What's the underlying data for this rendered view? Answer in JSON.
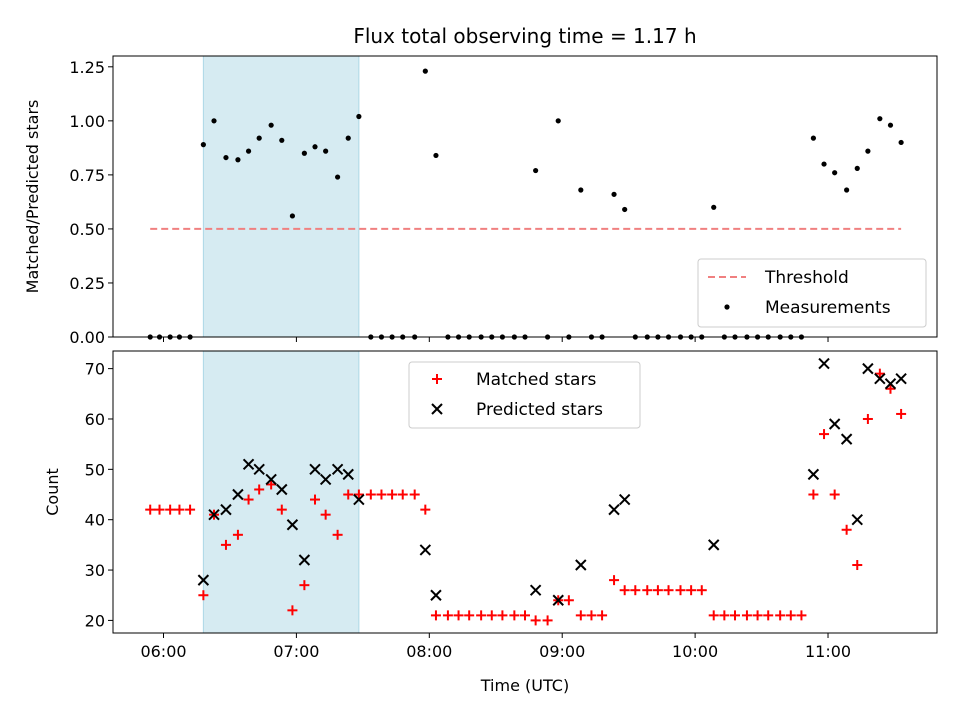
{
  "chart_data": [
    {
      "type": "scatter",
      "title": "Flux total observing time = 1.17 h",
      "xlabel": "",
      "ylabel": "Matched/Predicted stars",
      "ylim": [
        0,
        1.3
      ],
      "yticks": [
        "0.00",
        "0.25",
        "0.50",
        "0.75",
        "1.00",
        "1.25"
      ],
      "ytick_values": [
        0,
        0.25,
        0.5,
        0.75,
        1.0,
        1.25
      ],
      "xlim_hours": [
        5.62,
        11.82
      ],
      "highlight_span_hours": [
        6.3,
        7.47
      ],
      "highlight_color": "#add8e6",
      "legend_position": "lower-right",
      "threshold": {
        "name": "Threshold",
        "value": 0.5,
        "x_start": 5.9,
        "x_end": 11.55,
        "color": "#f08080",
        "style": "dashed"
      },
      "series": [
        {
          "name": "Measurements",
          "color": "#000000",
          "x": [
            5.9,
            5.97,
            6.05,
            6.12,
            6.2,
            6.3,
            6.38,
            6.47,
            6.56,
            6.64,
            6.72,
            6.81,
            6.89,
            6.97,
            7.06,
            7.14,
            7.22,
            7.31,
            7.39,
            7.47,
            7.56,
            7.64,
            7.72,
            7.8,
            7.89,
            7.97,
            8.05,
            8.14,
            8.22,
            8.3,
            8.39,
            8.47,
            8.55,
            8.64,
            8.72,
            8.8,
            8.89,
            8.97,
            9.05,
            9.14,
            9.22,
            9.3,
            9.39,
            9.47,
            9.55,
            9.64,
            9.72,
            9.8,
            9.89,
            9.97,
            10.05,
            10.14,
            10.22,
            10.3,
            10.39,
            10.47,
            10.55,
            10.64,
            10.72,
            10.8,
            10.89,
            10.97,
            11.05,
            11.14,
            11.22,
            11.3,
            11.39,
            11.47,
            11.55
          ],
          "y": [
            0,
            0,
            0,
            0,
            0,
            0.89,
            1.0,
            0.83,
            0.82,
            0.86,
            0.92,
            0.98,
            0.91,
            0.56,
            0.85,
            0.88,
            0.86,
            0.74,
            0.92,
            1.02,
            0,
            0,
            0,
            0,
            0,
            1.23,
            0.84,
            0,
            0,
            0,
            0,
            0,
            0,
            0,
            0,
            0.77,
            0,
            1.0,
            0,
            0.68,
            0,
            0,
            0.66,
            0.59,
            0,
            0,
            0,
            0,
            0,
            0,
            0,
            0.6,
            0,
            0,
            0,
            0,
            0,
            0,
            0,
            0,
            0.92,
            0.8,
            0.76,
            0.68,
            0.78,
            0.86,
            1.01,
            0.98,
            0.9
          ]
        }
      ]
    },
    {
      "type": "scatter",
      "title": "",
      "xlabel": "Time (UTC)",
      "ylabel": "Count",
      "ylim": [
        17.5,
        73.5
      ],
      "yticks": [
        "20",
        "30",
        "40",
        "50",
        "60",
        "70"
      ],
      "ytick_values": [
        20,
        30,
        40,
        50,
        60,
        70
      ],
      "xticks": [
        "06:00",
        "07:00",
        "08:00",
        "09:00",
        "10:00",
        "11:00"
      ],
      "xtick_hours": [
        6,
        7,
        8,
        9,
        10,
        11
      ],
      "xlim_hours": [
        5.62,
        11.82
      ],
      "highlight_span_hours": [
        6.3,
        7.47
      ],
      "highlight_color": "#add8e6",
      "legend_position": "upper-center",
      "series": [
        {
          "name": "Matched stars",
          "color": "#ff0000",
          "marker": "plus",
          "x": [
            5.9,
            5.97,
            6.05,
            6.12,
            6.2,
            6.3,
            6.38,
            6.47,
            6.56,
            6.64,
            6.72,
            6.81,
            6.89,
            6.97,
            7.06,
            7.14,
            7.22,
            7.31,
            7.39,
            7.47,
            7.56,
            7.64,
            7.72,
            7.8,
            7.89,
            7.97,
            8.05,
            8.14,
            8.22,
            8.3,
            8.39,
            8.47,
            8.55,
            8.64,
            8.72,
            8.8,
            8.89,
            8.97,
            9.05,
            9.14,
            9.22,
            9.3,
            9.39,
            9.47,
            9.55,
            9.64,
            9.72,
            9.8,
            9.89,
            9.97,
            10.05,
            10.14,
            10.22,
            10.3,
            10.39,
            10.47,
            10.55,
            10.64,
            10.72,
            10.8,
            10.89,
            10.97,
            11.05,
            11.14,
            11.22,
            11.3,
            11.39,
            11.47,
            11.55
          ],
          "y": [
            42,
            42,
            42,
            42,
            42,
            25,
            41,
            35,
            37,
            44,
            46,
            47,
            42,
            22,
            27,
            44,
            41,
            37,
            45,
            45,
            45,
            45,
            45,
            45,
            45,
            42,
            21,
            21,
            21,
            21,
            21,
            21,
            21,
            21,
            21,
            20,
            20,
            24,
            24,
            21,
            21,
            21,
            28,
            26,
            26,
            26,
            26,
            26,
            26,
            26,
            26,
            21,
            21,
            21,
            21,
            21,
            21,
            21,
            21,
            21,
            45,
            57,
            45,
            38,
            31,
            60,
            69,
            66,
            61
          ]
        },
        {
          "name": "Predicted stars",
          "color": "#000000",
          "marker": "x",
          "x": [
            6.3,
            6.38,
            6.47,
            6.56,
            6.64,
            6.72,
            6.81,
            6.89,
            6.97,
            7.06,
            7.14,
            7.22,
            7.31,
            7.39,
            7.47,
            7.97,
            8.05,
            8.8,
            8.97,
            9.14,
            9.39,
            9.47,
            10.14,
            10.89,
            10.97,
            11.05,
            11.14,
            11.22,
            11.3,
            11.39,
            11.47,
            11.55
          ],
          "y": [
            28,
            41,
            42,
            45,
            51,
            50,
            48,
            46,
            39,
            32,
            50,
            48,
            50,
            49,
            44,
            34,
            25,
            26,
            24,
            31,
            42,
            44,
            35,
            49,
            71,
            59,
            56,
            40,
            70,
            68,
            67,
            68
          ]
        }
      ]
    }
  ]
}
